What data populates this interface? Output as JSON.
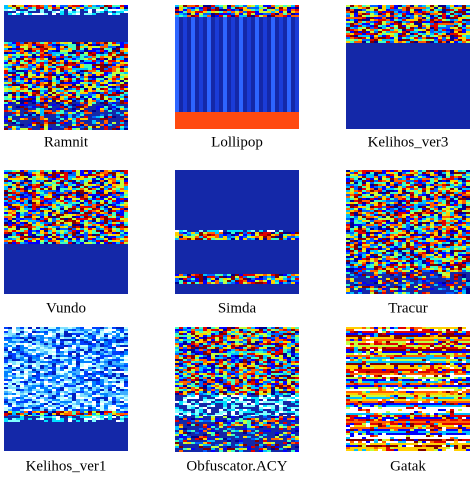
{
  "panels": [
    {
      "label": "Ramnit"
    },
    {
      "label": "Lollipop"
    },
    {
      "label": "Kelihos_ver3"
    },
    {
      "label": "Vundo"
    },
    {
      "label": "Simda"
    },
    {
      "label": "Tracur"
    },
    {
      "label": "Kelihos_ver1"
    },
    {
      "label": "Obfuscator.ACY"
    },
    {
      "label": "Gatak"
    }
  ]
}
